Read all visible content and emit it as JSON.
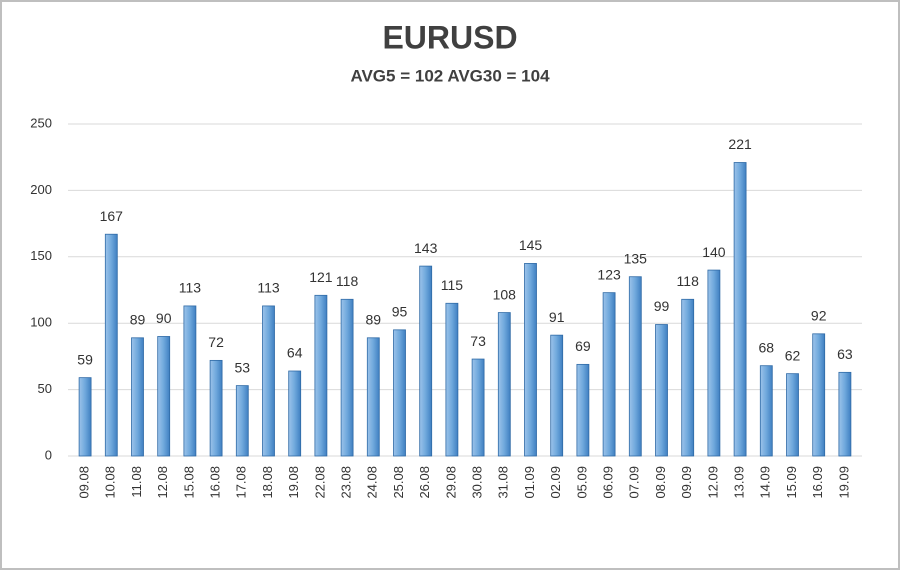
{
  "chart_data": {
    "type": "bar",
    "title": "EURUSD",
    "subtitle": "AVG5 = 102 AVG30 = 104",
    "categories": [
      "09.08",
      "10.08",
      "11.08",
      "12.08",
      "15.08",
      "16.08",
      "17.08",
      "18.08",
      "19.08",
      "22.08",
      "23.08",
      "24.08",
      "25.08",
      "26.08",
      "29.08",
      "30.08",
      "31.08",
      "01.09",
      "02.09",
      "05.09",
      "06.09",
      "07.09",
      "08.09",
      "09.09",
      "12.09",
      "13.09",
      "14.09",
      "15.09",
      "16.09",
      "19.09"
    ],
    "values": [
      59,
      167,
      89,
      90,
      113,
      72,
      53,
      113,
      64,
      121,
      118,
      89,
      95,
      143,
      115,
      73,
      108,
      145,
      91,
      69,
      123,
      135,
      99,
      118,
      140,
      221,
      68,
      62,
      92,
      63
    ],
    "color": "#5b9bd5",
    "ylim": [
      0,
      250
    ],
    "yticks": [
      0,
      50,
      100,
      150,
      200,
      250
    ],
    "grid": true
  }
}
